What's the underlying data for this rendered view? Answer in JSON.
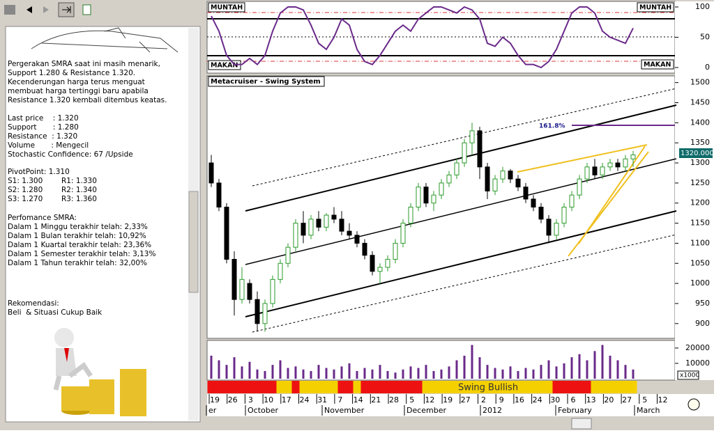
{
  "info": {
    "paragraphs": [
      [
        "Pergerakan SMRA saat ini masih menarik,",
        "Support 1.280 & Resistance 1.320.",
        "Kecenderungan harga terus menguat",
        "membuat harga tertinggi baru apabila",
        "Resistance 1.320 kembali ditembus keatas."
      ],
      [
        "Last price    : 1.320",
        "Support       : 1.280",
        "Resistance  : 1.320",
        "Volume       : Mengecil",
        "Stochastic Confidence: 67 /Upside"
      ],
      [
        "PivotPoint: 1.310",
        "S1: 1.300        R1: 1.330",
        "S2: 1.280        R2: 1.340",
        "S3: 1.270        R3: 1.360"
      ],
      [
        "Perfomance SMRA:",
        "Dalam 1 Minggu terakhir telah: 2,33%",
        "Dalam 1 Bulan terakhir telah: 10,92%",
        "Dalam 1 Kuartal terakhir telah: 23,36%",
        "Dalam 1 Semester terakhir telah: 3,13%",
        "Dalam 1 Tahun terakhir telah: 32,00%"
      ],
      [
        "Rekomendasi:",
        "Beli  & Situasi Cukup Baik"
      ]
    ]
  },
  "stochastic": {
    "top_label": "MUNTAH",
    "bottom_label": "MAKAN",
    "color": "#6a2a8a",
    "ylim": [
      0,
      100
    ],
    "yticks": [
      0,
      50,
      100
    ],
    "values": [
      85,
      60,
      20,
      5,
      5,
      15,
      5,
      20,
      60,
      90,
      100,
      100,
      95,
      70,
      40,
      30,
      50,
      80,
      70,
      30,
      10,
      5,
      20,
      40,
      60,
      70,
      60,
      80,
      90,
      100,
      100,
      95,
      90,
      100,
      95,
      80,
      40,
      35,
      50,
      40,
      20,
      5,
      5,
      0,
      10,
      30,
      60,
      90,
      100,
      100,
      90,
      60,
      50,
      45,
      40,
      65
    ]
  },
  "price": {
    "title": "Metacruiser - Swing System",
    "annotation": "161.8%",
    "last_label": "1320.000",
    "ylim": [
      865,
      1515
    ],
    "yticks": [
      900,
      950,
      1000,
      1050,
      1100,
      1150,
      1200,
      1250,
      1300,
      1350,
      1400,
      1450,
      1500
    ],
    "up_color": "#2a9a2a",
    "down_color": "#000000",
    "candles": [
      [
        1300,
        1320,
        1240,
        1250
      ],
      [
        1250,
        1260,
        1180,
        1190
      ],
      [
        1190,
        1200,
        1050,
        1060
      ],
      [
        1060,
        1080,
        920,
        960
      ],
      [
        960,
        1040,
        950,
        1010
      ],
      [
        1000,
        1010,
        950,
        960
      ],
      [
        960,
        980,
        880,
        900
      ],
      [
        900,
        960,
        880,
        950
      ],
      [
        950,
        1020,
        940,
        1010
      ],
      [
        1010,
        1060,
        1000,
        1050
      ],
      [
        1050,
        1100,
        1040,
        1090
      ],
      [
        1090,
        1160,
        1080,
        1150
      ],
      [
        1150,
        1180,
        1100,
        1120
      ],
      [
        1120,
        1170,
        1110,
        1160
      ],
      [
        1160,
        1180,
        1130,
        1140
      ],
      [
        1140,
        1175,
        1130,
        1170
      ],
      [
        1170,
        1190,
        1150,
        1160
      ],
      [
        1160,
        1180,
        1120,
        1130
      ],
      [
        1130,
        1150,
        1110,
        1120
      ],
      [
        1120,
        1130,
        1090,
        1100
      ],
      [
        1100,
        1110,
        1060,
        1070
      ],
      [
        1070,
        1080,
        1020,
        1030
      ],
      [
        1030,
        1050,
        1000,
        1040
      ],
      [
        1040,
        1070,
        1030,
        1060
      ],
      [
        1060,
        1110,
        1050,
        1100
      ],
      [
        1100,
        1160,
        1090,
        1150
      ],
      [
        1150,
        1200,
        1140,
        1190
      ],
      [
        1190,
        1250,
        1180,
        1240
      ],
      [
        1240,
        1250,
        1190,
        1200
      ],
      [
        1200,
        1230,
        1180,
        1220
      ],
      [
        1220,
        1260,
        1210,
        1250
      ],
      [
        1250,
        1280,
        1240,
        1270
      ],
      [
        1270,
        1310,
        1260,
        1300
      ],
      [
        1300,
        1360,
        1290,
        1350
      ],
      [
        1350,
        1400,
        1320,
        1380
      ],
      [
        1380,
        1390,
        1260,
        1290
      ],
      [
        1290,
        1300,
        1210,
        1230
      ],
      [
        1230,
        1270,
        1220,
        1260
      ],
      [
        1260,
        1290,
        1250,
        1280
      ],
      [
        1280,
        1285,
        1250,
        1260
      ],
      [
        1260,
        1270,
        1230,
        1240
      ],
      [
        1240,
        1250,
        1200,
        1210
      ],
      [
        1210,
        1220,
        1180,
        1190
      ],
      [
        1190,
        1200,
        1150,
        1160
      ],
      [
        1160,
        1170,
        1100,
        1120
      ],
      [
        1120,
        1160,
        1110,
        1150
      ],
      [
        1150,
        1200,
        1140,
        1190
      ],
      [
        1190,
        1230,
        1180,
        1220
      ],
      [
        1220,
        1270,
        1210,
        1260
      ],
      [
        1260,
        1300,
        1250,
        1290
      ],
      [
        1290,
        1310,
        1260,
        1270
      ],
      [
        1270,
        1300,
        1260,
        1290
      ],
      [
        1290,
        1310,
        1280,
        1300
      ],
      [
        1300,
        1310,
        1280,
        1290
      ],
      [
        1290,
        1320,
        1280,
        1310
      ],
      [
        1310,
        1330,
        1290,
        1320
      ]
    ]
  },
  "volume": {
    "color": "#6a2a8a",
    "unit": "x1000",
    "ylim": [
      0,
      24500
    ],
    "yticks": [
      10000,
      20000
    ],
    "values": [
      15000,
      12000,
      9000,
      14000,
      8000,
      11000,
      6000,
      5000,
      9000,
      12000,
      7000,
      8000,
      6000,
      5000,
      9000,
      7000,
      6000,
      8000,
      10000,
      5000,
      7000,
      6000,
      9000,
      5000,
      4000,
      6000,
      8000,
      7000,
      9000,
      5000,
      6000,
      8000,
      12000,
      15000,
      22000,
      14000,
      9000,
      7000,
      6000,
      8000,
      5000,
      7000,
      6000,
      9000,
      12000,
      8000,
      10000,
      14000,
      16000,
      12000,
      18000,
      22000,
      15000,
      12000,
      9000,
      6000
    ]
  },
  "swing": {
    "label": "Swing Bullish",
    "segments": [
      {
        "color": "#ee1111",
        "span": [
          0,
          8
        ]
      },
      {
        "color": "#f5d000",
        "span": [
          9,
          10
        ]
      },
      {
        "color": "#ee1111",
        "span": [
          11,
          11
        ]
      },
      {
        "color": "#f5d000",
        "span": [
          12,
          16
        ]
      },
      {
        "color": "#ee1111",
        "span": [
          17,
          18
        ]
      },
      {
        "color": "#f5d000",
        "span": [
          19,
          19
        ]
      },
      {
        "color": "#ee1111",
        "span": [
          20,
          27
        ]
      },
      {
        "color": "#f5d000",
        "span": [
          28,
          44
        ]
      },
      {
        "color": "#ee1111",
        "span": [
          45,
          49
        ]
      },
      {
        "color": "#f5d000",
        "span": [
          50,
          55
        ]
      }
    ]
  },
  "dates": {
    "days": [
      "19",
      "26",
      "3",
      "10",
      "17",
      "24",
      "31",
      "7",
      "14",
      "21",
      "28",
      "5",
      "12",
      "19",
      "27",
      "2",
      "9",
      "16",
      "24",
      "30",
      "6",
      "13",
      "20",
      "27",
      "5",
      "12"
    ],
    "months": [
      "er",
      "October",
      "November",
      "December",
      "2012",
      "February",
      "March"
    ]
  }
}
